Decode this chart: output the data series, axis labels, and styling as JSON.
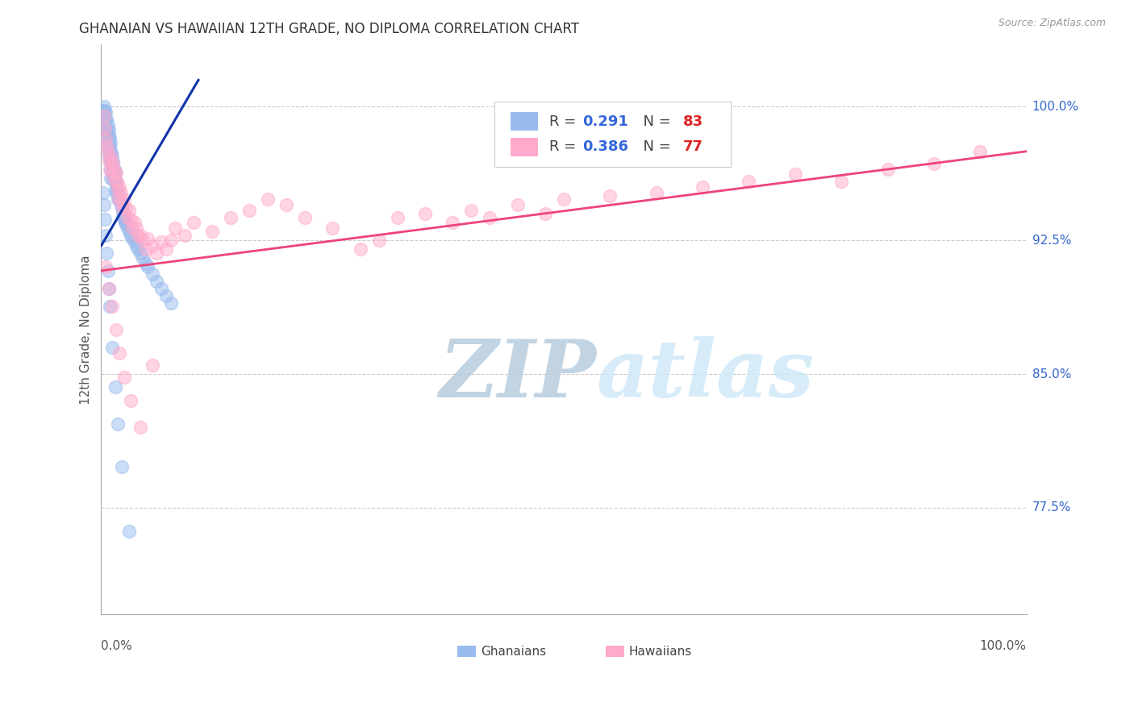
{
  "title": "GHANAIAN VS HAWAIIAN 12TH GRADE, NO DIPLOMA CORRELATION CHART",
  "source": "Source: ZipAtlas.com",
  "ylabel": "12th Grade, No Diploma",
  "legend_r1_val": "0.291",
  "legend_n1_val": "83",
  "legend_r2_val": "0.386",
  "legend_n2_val": "77",
  "blue_color": "#99BBEE",
  "pink_color": "#FFAACC",
  "blue_line_color": "#1133AA",
  "pink_line_color": "#EE4477",
  "ytick_labels": [
    "77.5%",
    "85.0%",
    "92.5%",
    "100.0%"
  ],
  "ytick_values": [
    0.775,
    0.85,
    0.925,
    1.0
  ],
  "xmin": 0.0,
  "xmax": 1.0,
  "ymin": 0.715,
  "ymax": 1.035,
  "blue_trend_x": [
    0.0,
    0.105
  ],
  "blue_trend_y": [
    0.922,
    1.015
  ],
  "pink_trend_x": [
    0.0,
    1.0
  ],
  "pink_trend_y": [
    0.908,
    0.975
  ],
  "blue_x": [
    0.002,
    0.003,
    0.003,
    0.004,
    0.004,
    0.004,
    0.005,
    0.005,
    0.005,
    0.005,
    0.006,
    0.006,
    0.007,
    0.007,
    0.007,
    0.008,
    0.008,
    0.008,
    0.008,
    0.009,
    0.009,
    0.009,
    0.01,
    0.01,
    0.01,
    0.01,
    0.01,
    0.011,
    0.011,
    0.012,
    0.012,
    0.012,
    0.013,
    0.013,
    0.013,
    0.014,
    0.014,
    0.015,
    0.015,
    0.015,
    0.016,
    0.016,
    0.017,
    0.018,
    0.018,
    0.019,
    0.02,
    0.021,
    0.022,
    0.023,
    0.024,
    0.025,
    0.026,
    0.027,
    0.028,
    0.03,
    0.032,
    0.034,
    0.036,
    0.038,
    0.04,
    0.042,
    0.045,
    0.048,
    0.05,
    0.055,
    0.06,
    0.065,
    0.07,
    0.075,
    0.002,
    0.003,
    0.004,
    0.005,
    0.006,
    0.007,
    0.008,
    0.009,
    0.012,
    0.015,
    0.018,
    0.022,
    0.03
  ],
  "blue_y": [
    0.998,
    1.0,
    0.995,
    0.998,
    0.993,
    0.988,
    0.997,
    0.993,
    0.988,
    0.983,
    0.993,
    0.987,
    0.99,
    0.985,
    0.98,
    0.987,
    0.982,
    0.977,
    0.972,
    0.983,
    0.978,
    0.973,
    0.98,
    0.975,
    0.97,
    0.965,
    0.96,
    0.974,
    0.968,
    0.972,
    0.967,
    0.962,
    0.969,
    0.964,
    0.959,
    0.965,
    0.96,
    0.963,
    0.958,
    0.953,
    0.957,
    0.952,
    0.955,
    0.953,
    0.948,
    0.95,
    0.948,
    0.945,
    0.943,
    0.94,
    0.938,
    0.937,
    0.935,
    0.934,
    0.932,
    0.93,
    0.928,
    0.926,
    0.924,
    0.922,
    0.92,
    0.918,
    0.915,
    0.912,
    0.91,
    0.906,
    0.902,
    0.898,
    0.894,
    0.89,
    0.952,
    0.945,
    0.937,
    0.928,
    0.918,
    0.908,
    0.898,
    0.888,
    0.865,
    0.843,
    0.822,
    0.798,
    0.762
  ],
  "pink_x": [
    0.003,
    0.004,
    0.005,
    0.006,
    0.007,
    0.008,
    0.009,
    0.01,
    0.011,
    0.012,
    0.013,
    0.014,
    0.015,
    0.016,
    0.017,
    0.018,
    0.019,
    0.02,
    0.021,
    0.022,
    0.023,
    0.025,
    0.027,
    0.028,
    0.03,
    0.032,
    0.034,
    0.036,
    0.038,
    0.04,
    0.042,
    0.045,
    0.048,
    0.05,
    0.055,
    0.06,
    0.065,
    0.07,
    0.075,
    0.08,
    0.09,
    0.1,
    0.12,
    0.14,
    0.16,
    0.18,
    0.2,
    0.22,
    0.25,
    0.28,
    0.3,
    0.32,
    0.35,
    0.38,
    0.4,
    0.42,
    0.45,
    0.48,
    0.5,
    0.55,
    0.6,
    0.65,
    0.7,
    0.75,
    0.8,
    0.85,
    0.9,
    0.95,
    0.005,
    0.008,
    0.012,
    0.016,
    0.02,
    0.025,
    0.032,
    0.042,
    0.055
  ],
  "pink_y": [
    0.995,
    0.988,
    0.982,
    0.978,
    0.975,
    0.97,
    0.965,
    0.972,
    0.968,
    0.962,
    0.968,
    0.963,
    0.958,
    0.963,
    0.958,
    0.953,
    0.948,
    0.955,
    0.952,
    0.947,
    0.943,
    0.948,
    0.943,
    0.938,
    0.942,
    0.937,
    0.932,
    0.935,
    0.932,
    0.928,
    0.928,
    0.925,
    0.92,
    0.926,
    0.922,
    0.918,
    0.924,
    0.92,
    0.925,
    0.932,
    0.928,
    0.935,
    0.93,
    0.938,
    0.942,
    0.948,
    0.945,
    0.938,
    0.932,
    0.92,
    0.925,
    0.938,
    0.94,
    0.935,
    0.942,
    0.938,
    0.945,
    0.94,
    0.948,
    0.95,
    0.952,
    0.955,
    0.958,
    0.962,
    0.958,
    0.965,
    0.968,
    0.975,
    0.91,
    0.898,
    0.888,
    0.875,
    0.862,
    0.848,
    0.835,
    0.82,
    0.855
  ],
  "background_color": "#FFFFFF",
  "grid_color": "#CCCCCC",
  "watermark_color": "#C5D8F0",
  "title_fontsize": 12,
  "axis_label_fontsize": 11,
  "tick_fontsize": 11,
  "legend_fontsize": 13,
  "source_fontsize": 9
}
